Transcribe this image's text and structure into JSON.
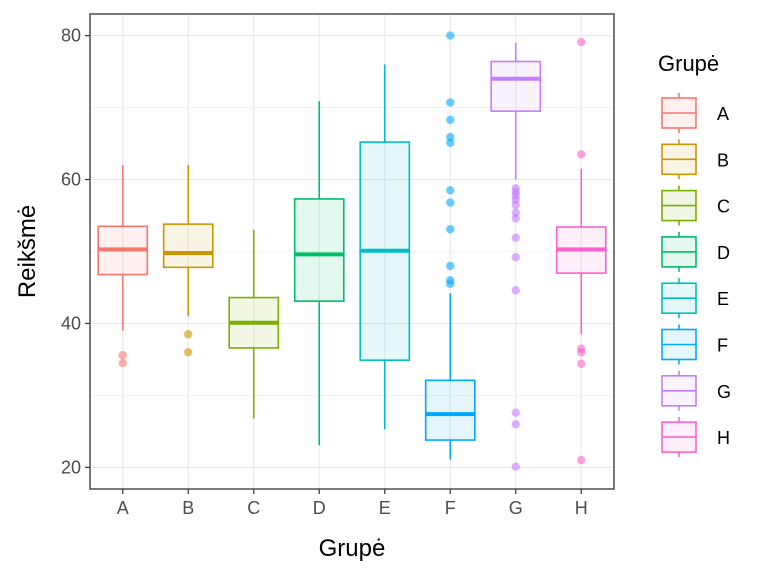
{
  "chart_data": {
    "type": "box",
    "xlabel": "Grupė",
    "ylabel": "Reikšmė",
    "ylim": [
      17.0,
      83.0
    ],
    "yticks": [
      20,
      40,
      60,
      80
    ],
    "grid": true,
    "legend": {
      "title": "Grupė",
      "position": "right"
    },
    "categories": [
      "A",
      "B",
      "C",
      "D",
      "E",
      "F",
      "G",
      "H"
    ],
    "colors": [
      "#F8766D",
      "#CD9600",
      "#7CAE00",
      "#00BE67",
      "#00BFC4",
      "#00A9FF",
      "#C77CFF",
      "#FF61CC"
    ],
    "boxes": [
      {
        "group": "A",
        "whisker_low": 39.0,
        "q1": 46.8,
        "median": 50.3,
        "q3": 53.5,
        "whisker_high": 62.0,
        "outliers": [
          35.6,
          34.5
        ]
      },
      {
        "group": "B",
        "whisker_low": 41.0,
        "q1": 47.8,
        "median": 49.8,
        "q3": 53.8,
        "whisker_high": 62.0,
        "outliers": [
          38.5,
          36.0
        ]
      },
      {
        "group": "C",
        "whisker_low": 26.8,
        "q1": 36.6,
        "median": 40.1,
        "q3": 43.6,
        "whisker_high": 53.0,
        "outliers": []
      },
      {
        "group": "D",
        "whisker_low": 23.1,
        "q1": 43.1,
        "median": 49.6,
        "q3": 57.3,
        "whisker_high": 70.9,
        "outliers": []
      },
      {
        "group": "E",
        "whisker_low": 25.3,
        "q1": 34.9,
        "median": 50.1,
        "q3": 65.2,
        "whisker_high": 76.0,
        "outliers": []
      },
      {
        "group": "F",
        "whisker_low": 21.1,
        "q1": 23.8,
        "median": 27.4,
        "q3": 32.1,
        "whisker_high": 44.2,
        "outliers": [
          80.0,
          70.7,
          68.3,
          65.9,
          65.1,
          58.5,
          56.8,
          53.1,
          48.0,
          46.0,
          45.5
        ]
      },
      {
        "group": "G",
        "whisker_low": 60.0,
        "q1": 69.5,
        "median": 74.0,
        "q3": 76.4,
        "whisker_high": 79.0,
        "outliers": [
          58.8,
          58.3,
          57.8,
          57.2,
          56.5,
          55.4,
          54.6,
          51.9,
          49.2,
          44.6,
          27.6,
          26.0,
          20.1
        ]
      },
      {
        "group": "H",
        "whisker_low": 38.5,
        "q1": 47.0,
        "median": 50.3,
        "q3": 53.4,
        "whisker_high": 61.5,
        "outliers": [
          79.1,
          63.5,
          36.5,
          36.0,
          34.4,
          21.0
        ]
      }
    ]
  }
}
